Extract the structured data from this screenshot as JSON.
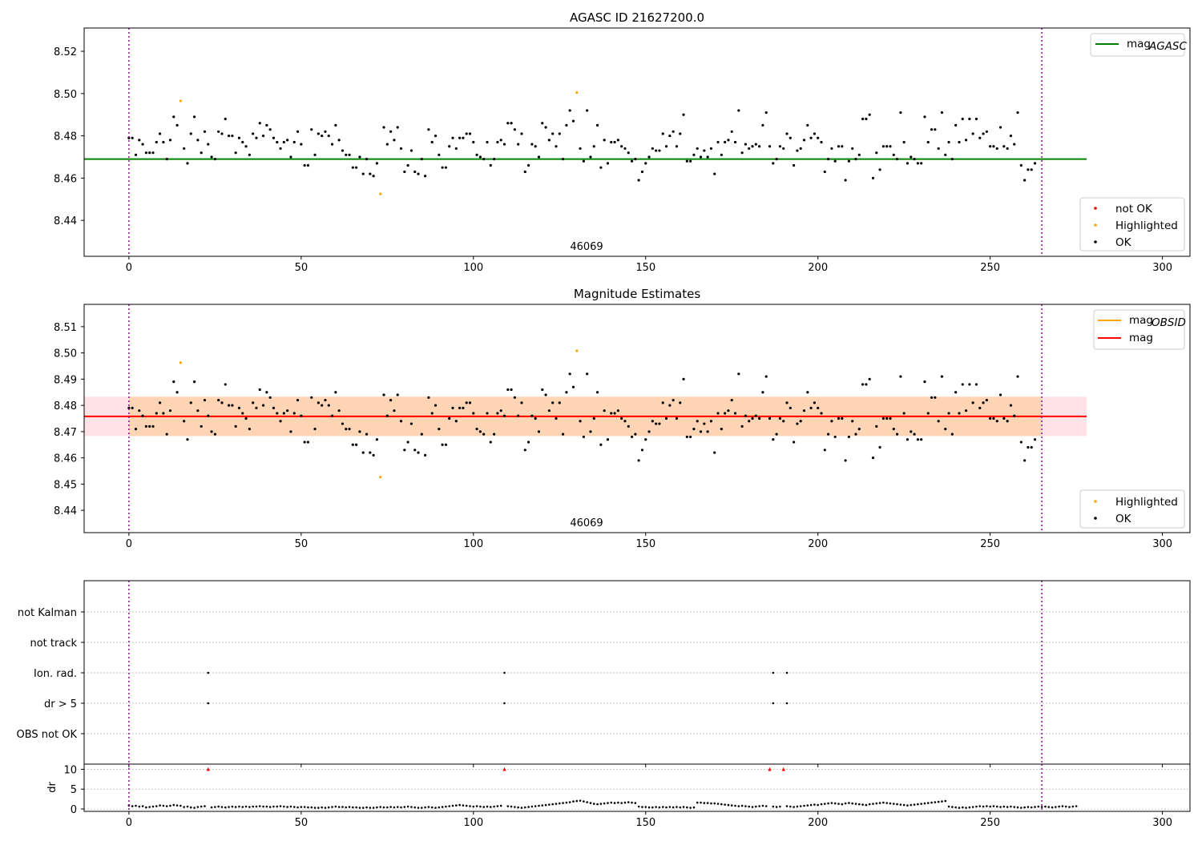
{
  "figure": {
    "title_top": "AGASC ID 21627200.0",
    "title_mid": "Magnitude Estimates"
  },
  "chart_data": [
    {
      "type": "scatter",
      "title": "AGASC ID 21627200.0",
      "xlim": [
        -13,
        308
      ],
      "ylim": [
        8.423,
        8.531
      ],
      "xticks": [
        0,
        50,
        100,
        150,
        200,
        250,
        300
      ],
      "yticks": [
        8.44,
        8.46,
        8.48,
        8.5,
        8.52
      ],
      "ytick_labels": [
        "8.44",
        "8.46",
        "8.48",
        "8.50",
        "8.52"
      ],
      "annotation": "46069",
      "vlines": [
        0,
        265
      ],
      "hline": {
        "name": "mag_AGASC",
        "value": 8.469,
        "x_range": [
          -13,
          278
        ],
        "color": "#008000"
      },
      "legend_lines": [
        {
          "label": "mag",
          "sub": "AGASC",
          "color": "#008000"
        }
      ],
      "legend_points": [
        {
          "label": "not OK",
          "color": "#ff0000"
        },
        {
          "label": "Highlighted",
          "color": "#ffa500"
        },
        {
          "label": "OK",
          "color": "#000000"
        }
      ],
      "highlighted": [
        {
          "x": 15,
          "y": 8.4965
        },
        {
          "x": 73,
          "y": 8.4525
        },
        {
          "x": 130,
          "y": 8.5005
        }
      ]
    },
    {
      "type": "scatter",
      "title": "Magnitude Estimates",
      "xlim": [
        -13,
        308
      ],
      "ylim": [
        8.4315,
        8.5185
      ],
      "xticks": [
        0,
        50,
        100,
        150,
        200,
        250,
        300
      ],
      "yticks": [
        8.44,
        8.45,
        8.46,
        8.47,
        8.48,
        8.49,
        8.5,
        8.51
      ],
      "ytick_labels": [
        "8.44",
        "8.45",
        "8.46",
        "8.47",
        "8.48",
        "8.49",
        "8.50",
        "8.51"
      ],
      "annotation": "46069",
      "vlines": [
        0,
        265
      ],
      "mag": {
        "value": 8.4758,
        "color": "#ff0000"
      },
      "mag_band": [
        8.4683,
        8.4833
      ],
      "mag_obsid": {
        "value": 8.4758,
        "color": "#ffa500"
      },
      "legend_lines": [
        {
          "label": "mag",
          "sub": "OBSID",
          "color": "#ffa500"
        },
        {
          "label": "mag",
          "sub": "",
          "color": "#ff0000"
        }
      ],
      "legend_points": [
        {
          "label": "Highlighted",
          "color": "#ffa500"
        },
        {
          "label": "OK",
          "color": "#000000"
        }
      ],
      "highlighted": [
        {
          "x": 15,
          "y": 8.4963
        },
        {
          "x": 73,
          "y": 8.4527
        },
        {
          "x": 130,
          "y": 8.5008
        }
      ]
    },
    {
      "type": "scatter",
      "title": "",
      "categories": [
        "OBS not OK",
        "dr > 5",
        "Ion. rad.",
        "not track",
        "not Kalman"
      ],
      "flags": {
        "dr > 5": [
          23,
          109,
          187,
          191
        ],
        "Ion. rad.": [
          23,
          109,
          187,
          191
        ],
        "not track": [],
        "not Kalman": [],
        "OBS not OK": []
      },
      "xticks": [
        0,
        50,
        100,
        150,
        200,
        250,
        300
      ],
      "vlines": [
        0,
        265
      ]
    },
    {
      "type": "scatter",
      "title": "",
      "ylabel": "dr",
      "ylim": [
        -0.6,
        11.3
      ],
      "yticks": [
        0,
        5,
        10
      ],
      "ytick_labels": [
        "0",
        "5",
        "10"
      ],
      "clipped_markers": [
        {
          "x": 23,
          "y": 10
        },
        {
          "x": 109,
          "y": 10
        },
        {
          "x": 187,
          "y": 10
        },
        {
          "x": 191,
          "y": 10
        }
      ],
      "xticks": [
        0,
        50,
        100,
        150,
        200,
        250,
        300
      ],
      "xtick_labels": [
        "0",
        "50",
        "100",
        "150",
        "200",
        "250",
        "300"
      ],
      "vlines": [
        0,
        265
      ]
    }
  ],
  "magnitudes": [
    8.479,
    8.479,
    8.471,
    8.478,
    8.476,
    8.472,
    8.472,
    8.472,
    8.477,
    8.481,
    8.477,
    8.469,
    8.478,
    8.489,
    8.485,
    8.4965,
    8.474,
    8.467,
    8.481,
    8.489,
    8.478,
    8.472,
    8.482,
    8.476,
    8.47,
    8.469,
    8.482,
    8.481,
    8.488,
    8.48,
    8.48,
    8.472,
    8.479,
    8.477,
    8.475,
    8.471,
    8.481,
    8.479,
    8.486,
    8.48,
    8.485,
    8.483,
    8.479,
    8.477,
    8.474,
    8.477,
    8.478,
    8.47,
    8.477,
    8.482,
    8.476,
    8.466,
    8.466,
    8.483,
    8.471,
    8.481,
    8.48,
    8.482,
    8.48,
    8.476,
    8.485,
    8.478,
    8.473,
    8.471,
    8.471,
    8.465,
    8.465,
    8.47,
    8.462,
    8.469,
    8.462,
    8.461,
    8.467,
    8.4525,
    8.484,
    8.476,
    8.482,
    8.478,
    8.484,
    8.474,
    8.463,
    8.466,
    8.473,
    8.463,
    8.462,
    8.469,
    8.461,
    8.483,
    8.477,
    8.48,
    8.471,
    8.465,
    8.465,
    8.475,
    8.479,
    8.474,
    8.479,
    8.479,
    8.481,
    8.481,
    8.477,
    8.471,
    8.47,
    8.469,
    8.477,
    8.466,
    8.469,
    8.477,
    8.478,
    8.476,
    8.486,
    8.486,
    8.483,
    8.476,
    8.481,
    8.463,
    8.466,
    8.476,
    8.475,
    8.47,
    8.486,
    8.484,
    8.478,
    8.481,
    8.475,
    8.481,
    8.469,
    8.485,
    8.492,
    8.487,
    8.5005,
    8.474,
    8.468,
    8.492,
    8.47,
    8.475,
    8.485,
    8.465,
    8.478,
    8.467,
    8.477,
    8.477,
    8.478,
    8.475,
    8.474,
    8.472,
    8.468,
    8.469,
    8.459,
    8.463,
    8.467,
    8.47,
    8.474,
    8.473,
    8.473,
    8.481,
    8.475,
    8.48,
    8.482,
    8.475,
    8.481,
    8.49,
    8.468,
    8.468,
    8.471,
    8.474,
    8.47,
    8.473,
    8.47,
    8.474,
    8.462,
    8.477,
    8.471,
    8.477,
    8.478,
    8.482,
    8.477,
    8.492,
    8.472,
    8.476,
    8.474,
    8.475,
    8.476,
    8.475,
    8.485,
    8.491,
    8.475,
    8.467,
    8.469,
    8.475,
    8.474,
    8.481,
    8.479,
    8.466,
    8.473,
    8.474,
    8.478,
    8.485,
    8.479,
    8.481,
    8.479,
    8.477,
    8.463,
    8.469,
    8.474,
    8.468,
    8.475,
    8.475,
    8.459,
    8.468,
    8.474,
    8.469,
    8.471,
    8.488,
    8.488,
    8.49,
    8.46,
    8.472,
    8.464,
    8.475,
    8.475,
    8.475,
    8.471,
    8.469,
    8.491,
    8.477,
    8.467,
    8.47,
    8.469,
    8.467,
    8.467,
    8.489,
    8.477,
    8.483,
    8.483,
    8.474,
    8.491,
    8.471,
    8.477,
    8.469,
    8.485,
    8.477,
    8.488,
    8.478,
    8.488,
    8.481,
    8.488,
    8.479,
    8.481,
    8.482,
    8.475,
    8.475,
    8.474,
    8.484,
    8.475,
    8.474,
    8.48,
    8.476,
    8.491,
    8.466,
    8.459,
    8.464,
    8.464,
    8.467
  ],
  "dr_values": [
    0.9,
    0.7,
    0.8,
    0.6,
    0.7,
    0.4,
    0.5,
    0.6,
    0.7,
    0.9,
    0.8,
    0.7,
    0.8,
    1.0,
    0.9,
    0.8,
    0.5,
    0.6,
    0.4,
    0.3,
    0.5,
    0.6,
    0.7,
    10,
    0.4,
    0.5,
    0.6,
    0.5,
    0.4,
    0.5,
    0.6,
    0.5,
    0.6,
    0.5,
    0.6,
    0.5,
    0.6,
    0.6,
    0.7,
    0.6,
    0.6,
    0.5,
    0.6,
    0.6,
    0.7,
    0.6,
    0.5,
    0.6,
    0.5,
    0.4,
    0.5,
    0.5,
    0.4,
    0.4,
    0.3,
    0.3,
    0.4,
    0.3,
    0.4,
    0.5,
    0.6,
    0.5,
    0.5,
    0.4,
    0.5,
    0.4,
    0.4,
    0.3,
    0.3,
    0.4,
    0.3,
    0.3,
    0.4,
    0.5,
    0.4,
    0.4,
    0.5,
    0.4,
    0.5,
    0.4,
    0.5,
    0.6,
    0.5,
    0.4,
    0.3,
    0.3,
    0.4,
    0.5,
    0.4,
    0.3,
    0.4,
    0.5,
    0.6,
    0.7,
    0.8,
    0.9,
    1.0,
    0.9,
    0.8,
    0.7,
    0.6,
    0.7,
    0.6,
    0.5,
    0.6,
    0.5,
    0.6,
    0.7,
    0.8,
    10,
    0.7,
    0.6,
    0.5,
    0.4,
    0.3,
    0.4,
    0.5,
    0.6,
    0.7,
    0.8,
    0.9,
    1.0,
    1.1,
    1.2,
    1.3,
    1.4,
    1.5,
    1.6,
    1.7,
    1.9,
    2.0,
    2.1,
    1.9,
    1.7,
    1.5,
    1.3,
    1.2,
    1.3,
    1.4,
    1.5,
    1.6,
    1.5,
    1.6,
    1.5,
    1.6,
    1.7,
    1.6,
    1.5,
    0.6,
    0.5,
    0.5,
    0.4,
    0.4,
    0.5,
    0.4,
    0.5,
    0.4,
    0.5,
    0.4,
    0.5,
    0.4,
    0.5,
    0.4,
    0.3,
    0.4,
    1.6,
    1.6,
    1.5,
    1.5,
    1.4,
    1.4,
    1.3,
    1.2,
    1.1,
    1.0,
    0.9,
    0.8,
    0.7,
    0.8,
    0.7,
    0.6,
    0.5,
    0.6,
    0.7,
    0.8,
    0.7,
    10,
    0.6,
    0.5,
    0.6,
    10,
    0.7,
    0.6,
    0.5,
    0.6,
    0.7,
    0.8,
    0.9,
    1.0,
    1.1,
    1.0,
    1.2,
    1.3,
    1.4,
    1.5,
    1.4,
    1.3,
    1.2,
    1.4,
    1.5,
    1.4,
    1.3,
    1.2,
    1.1,
    1.0,
    1.2,
    1.3,
    1.4,
    1.5,
    1.6,
    1.5,
    1.4,
    1.3,
    1.2,
    1.1,
    1.0,
    0.9,
    1.0,
    1.1,
    1.2,
    1.3,
    1.4,
    1.5,
    1.6,
    1.7,
    1.8,
    1.9,
    2.0,
    0.6,
    0.5,
    0.4,
    0.3,
    0.4,
    0.3,
    0.4,
    0.5,
    0.6,
    0.7,
    0.6,
    0.7,
    0.6,
    0.7,
    0.6,
    0.5,
    0.6,
    0.5,
    0.6,
    0.5,
    0.4,
    0.3,
    0.4,
    0.5,
    0.4,
    0.5,
    0.6,
    0.5,
    0.6,
    0.5,
    0.4,
    0.5,
    0.6,
    0.7,
    0.6,
    0.5,
    0.6,
    0.7
  ]
}
